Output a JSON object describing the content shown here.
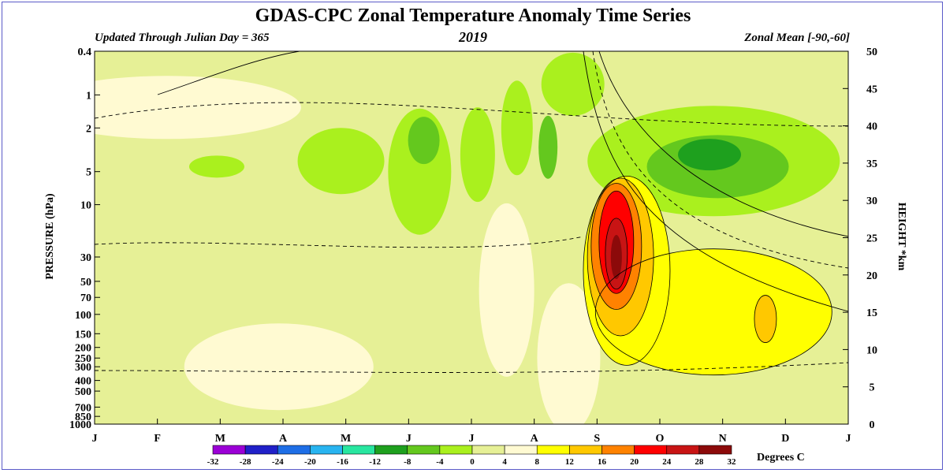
{
  "header": {
    "title": "GDAS-CPC Zonal Temperature Anomaly Time Series",
    "updated": "Updated Through Julian Day = 365",
    "year": "2019",
    "region": "Zonal Mean [-90,-60]"
  },
  "colors": {
    "palette": [
      "#9b00d6",
      "#2020c8",
      "#1e6ee6",
      "#28b4f0",
      "#28e6a0",
      "#1ea01e",
      "#64c81e",
      "#aaf01e",
      "#e6f096",
      "#fffad2",
      "#ffff00",
      "#ffc800",
      "#ff8200",
      "#ff0000",
      "#c81414",
      "#8c0a0a",
      "#966432"
    ],
    "frame": "#5a5ac8"
  },
  "chart_data": {
    "type": "heatmap",
    "title": "GDAS-CPC Zonal Temperature Anomaly Time Series",
    "subtitle": "2019",
    "xlabel": "",
    "ylabel": "PRESSURE (hPa)",
    "ylabel_right": "HEIGHT *km",
    "x_ticks": [
      "J",
      "F",
      "M",
      "A",
      "M",
      "J",
      "J",
      "A",
      "S",
      "O",
      "N",
      "D",
      "J"
    ],
    "x_range_days": [
      1,
      365
    ],
    "y_ticks_pressure": [
      "0.4",
      "1",
      "2",
      "5",
      "10",
      "30",
      "50",
      "70",
      "100",
      "150",
      "200",
      "250",
      "300",
      "400",
      "500",
      "700",
      "850",
      "1000"
    ],
    "y_range_pressure": [
      1000,
      0.4
    ],
    "y_scale": "log",
    "y_ticks_height": [
      "0",
      "5",
      "10",
      "15",
      "20",
      "25",
      "30",
      "35",
      "40",
      "45",
      "50"
    ],
    "colorbar": {
      "label": "Degrees C",
      "levels": [
        "-32",
        "-28",
        "-24",
        "-20",
        "-16",
        "-12",
        "-8",
        "-4",
        "0",
        "4",
        "8",
        "12",
        "16",
        "20",
        "24",
        "28",
        "32"
      ]
    },
    "features": [
      {
        "name": "cold anomaly upper",
        "day": 150,
        "pressure": 4,
        "value": -8
      },
      {
        "name": "cold anomaly upper",
        "day": 60,
        "pressure": 4,
        "value": -4
      },
      {
        "name": "cold anomaly upper",
        "day": 300,
        "pressure": 4,
        "value": -10
      },
      {
        "name": "warm anomaly",
        "day": 252,
        "pressure": 30,
        "value": 24
      },
      {
        "name": "warm anomaly",
        "day": 302,
        "pressure": 120,
        "value": 8
      }
    ],
    "grid": false,
    "legend": "bottom"
  }
}
